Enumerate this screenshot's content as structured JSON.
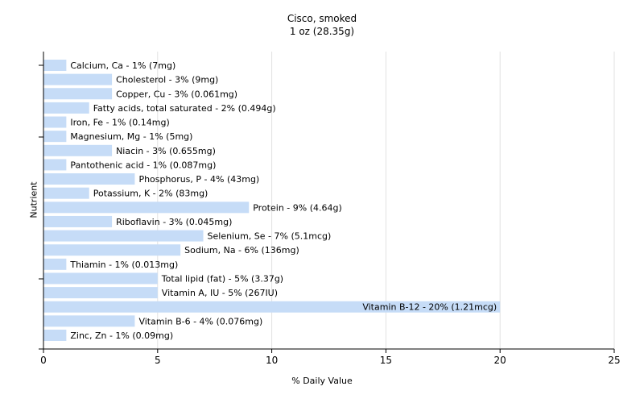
{
  "chart_data": {
    "type": "bar",
    "orientation": "horizontal",
    "title": "Cisco, smoked",
    "subtitle": "1 oz (28.35g)",
    "xlabel": "% Daily Value",
    "ylabel": "Nutrient",
    "xlim": [
      0,
      25
    ],
    "xticks": [
      "0",
      "5",
      "10",
      "15",
      "20",
      "25"
    ],
    "grid": true,
    "bar_color": "#c6dcf7",
    "bars": [
      {
        "name": "Calcium, Ca",
        "value": 1,
        "label": "Calcium, Ca - 1% (7mg)"
      },
      {
        "name": "Cholesterol",
        "value": 3,
        "label": "Cholesterol - 3% (9mg)"
      },
      {
        "name": "Copper, Cu",
        "value": 3,
        "label": "Copper, Cu - 3% (0.061mg)"
      },
      {
        "name": "Fatty acids, total saturated",
        "value": 2,
        "label": "Fatty acids, total saturated - 2% (0.494g)"
      },
      {
        "name": "Iron, Fe",
        "value": 1,
        "label": "Iron, Fe - 1% (0.14mg)"
      },
      {
        "name": "Magnesium, Mg",
        "value": 1,
        "label": "Magnesium, Mg - 1% (5mg)"
      },
      {
        "name": "Niacin",
        "value": 3,
        "label": "Niacin - 3% (0.655mg)"
      },
      {
        "name": "Pantothenic acid",
        "value": 1,
        "label": "Pantothenic acid - 1% (0.087mg)"
      },
      {
        "name": "Phosphorus, P",
        "value": 4,
        "label": "Phosphorus, P - 4% (43mg)"
      },
      {
        "name": "Potassium, K",
        "value": 2,
        "label": "Potassium, K - 2% (83mg)"
      },
      {
        "name": "Protein",
        "value": 9,
        "label": "Protein - 9% (4.64g)"
      },
      {
        "name": "Riboflavin",
        "value": 3,
        "label": "Riboflavin - 3% (0.045mg)"
      },
      {
        "name": "Selenium, Se",
        "value": 7,
        "label": "Selenium, Se - 7% (5.1mcg)"
      },
      {
        "name": "Sodium, Na",
        "value": 6,
        "label": "Sodium, Na - 6% (136mg)"
      },
      {
        "name": "Thiamin",
        "value": 1,
        "label": "Thiamin - 1% (0.013mg)"
      },
      {
        "name": "Total lipid (fat)",
        "value": 5,
        "label": "Total lipid (fat) - 5% (3.37g)"
      },
      {
        "name": "Vitamin A, IU",
        "value": 5,
        "label": "Vitamin A, IU - 5% (267IU)"
      },
      {
        "name": "Vitamin B-12",
        "value": 20,
        "label": "Vitamin B-12 - 20% (1.21mcg)"
      },
      {
        "name": "Vitamin B-6",
        "value": 4,
        "label": "Vitamin B-6 - 4% (0.076mg)"
      },
      {
        "name": "Zinc, Zn",
        "value": 1,
        "label": "Zinc, Zn - 1% (0.09mg)"
      }
    ]
  }
}
